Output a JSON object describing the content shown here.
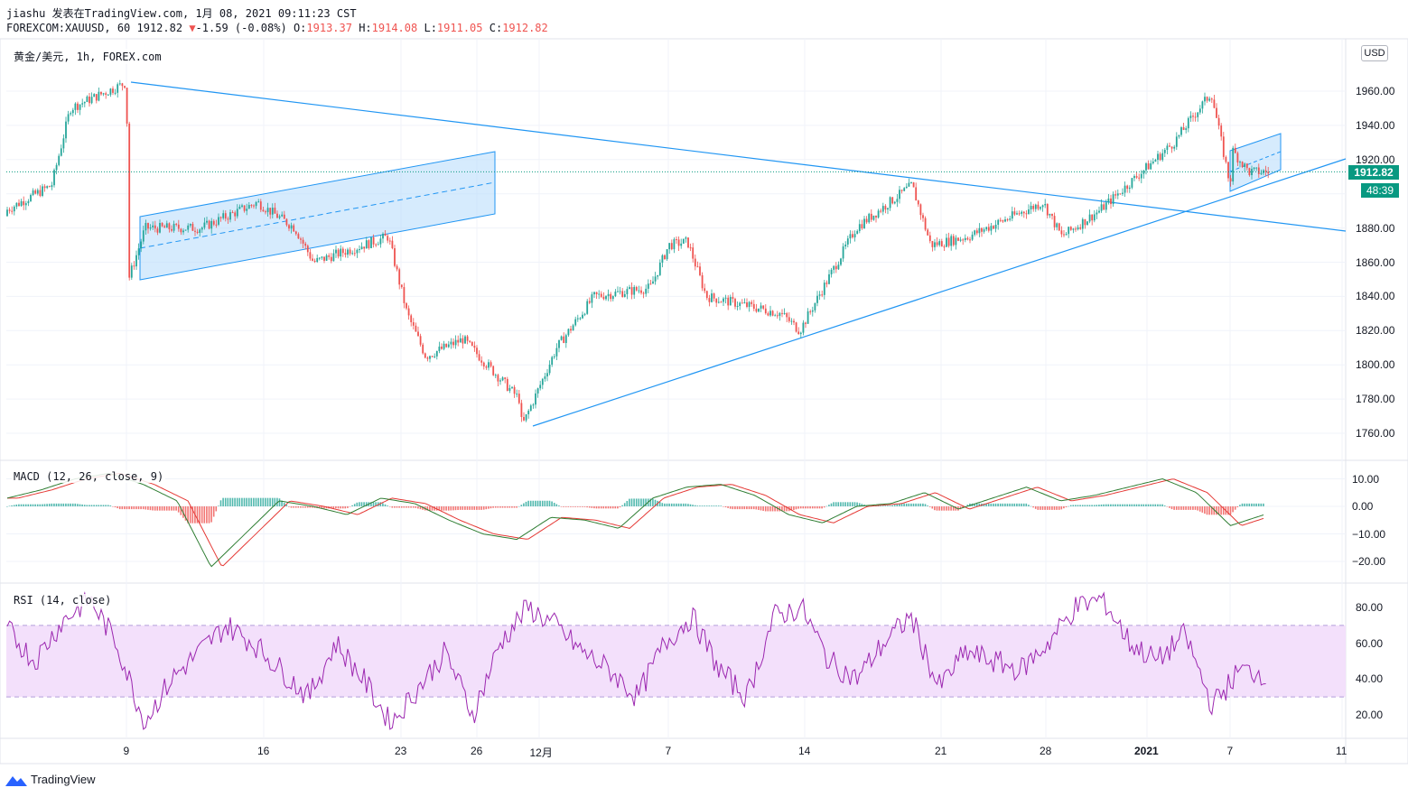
{
  "header": {
    "line1": "jiashu 发表在TradingView.com, 1月 08, 2021 09:11:23 CST",
    "symbol": "FOREXCOM:XAUUSD, 60 1912.82",
    "change_arrow": "▼",
    "change": "-1.59 (-0.08%)",
    "open_label": "O:",
    "open": "1913.37",
    "high_label": "H:",
    "high": "1914.08",
    "low_label": "L:",
    "low": "1911.05",
    "close_label": "C:",
    "close": "1912.82"
  },
  "main_pane": {
    "title": "黄金/美元, 1h, FOREX.com"
  },
  "macd_pane": {
    "title": "MACD (12, 26, close, 9)"
  },
  "rsi_pane": {
    "title": "RSI (14, close)"
  },
  "price_axis": {
    "currency": "USD",
    "current_price": "1912.82",
    "countdown": "48:39",
    "ticks": [
      "1960.00",
      "1940.00",
      "1920.00",
      "1880.00",
      "1860.00",
      "1840.00",
      "1820.00",
      "1800.00",
      "1780.00",
      "1760.00"
    ]
  },
  "macd_axis": {
    "ticks": [
      "10.00",
      "0.00",
      "−10.00",
      "−20.00"
    ]
  },
  "rsi_axis": {
    "ticks": [
      "80.00",
      "60.00",
      "40.00",
      "20.00"
    ]
  },
  "time_axis": {
    "ticks": [
      {
        "label": "9",
        "bold": false
      },
      {
        "label": "16",
        "bold": false
      },
      {
        "label": "23",
        "bold": false
      },
      {
        "label": "26",
        "bold": false
      },
      {
        "label": "12月",
        "bold": false
      },
      {
        "label": "7",
        "bold": false
      },
      {
        "label": "14",
        "bold": false
      },
      {
        "label": "21",
        "bold": false
      },
      {
        "label": "28",
        "bold": false
      },
      {
        "label": "2021",
        "bold": true
      },
      {
        "label": "7",
        "bold": false
      },
      {
        "label": "11",
        "bold": false
      }
    ]
  },
  "colors": {
    "up": "#26a69a",
    "down": "#ef5350",
    "trendline": "#2196f3",
    "channel_fill": "#bbdefb",
    "macd_line": "#2e7d32",
    "signal_line": "#e53935",
    "rsi_line": "#9c27b0",
    "rsi_band": "#f3e0fb",
    "price_tag": "#089981"
  },
  "chart_data": [
    {
      "type": "candlestick",
      "title": "黄金/美元, 1h, FOREX.com",
      "y_unit": "USD",
      "ylim": [
        1750,
        1975
      ],
      "x_range": [
        "2020-11-02",
        "2021-01-11"
      ],
      "approx_path": [
        {
          "x": "2020-11-02",
          "y": 1887
        },
        {
          "x": "2020-11-05",
          "y": 1905
        },
        {
          "x": "2020-11-06",
          "y": 1950
        },
        {
          "x": "2020-11-09",
          "y": 1965
        },
        {
          "x": "2020-11-09",
          "y": 1851
        },
        {
          "x": "2020-11-10",
          "y": 1880
        },
        {
          "x": "2020-11-13",
          "y": 1880
        },
        {
          "x": "2020-11-16",
          "y": 1895
        },
        {
          "x": "2020-11-18",
          "y": 1880
        },
        {
          "x": "2020-11-19",
          "y": 1860
        },
        {
          "x": "2020-11-23",
          "y": 1875
        },
        {
          "x": "2020-11-24",
          "y": 1830
        },
        {
          "x": "2020-11-25",
          "y": 1805
        },
        {
          "x": "2020-11-27",
          "y": 1815
        },
        {
          "x": "2020-11-30",
          "y": 1780
        },
        {
          "x": "2020-11-30",
          "y": 1764
        },
        {
          "x": "2020-12-02",
          "y": 1810
        },
        {
          "x": "2020-12-04",
          "y": 1840
        },
        {
          "x": "2020-12-07",
          "y": 1845
        },
        {
          "x": "2020-12-08",
          "y": 1870
        },
        {
          "x": "2020-12-09",
          "y": 1872
        },
        {
          "x": "2020-12-10",
          "y": 1840
        },
        {
          "x": "2020-12-14",
          "y": 1830
        },
        {
          "x": "2020-12-15",
          "y": 1820
        },
        {
          "x": "2020-12-17",
          "y": 1860
        },
        {
          "x": "2020-12-18",
          "y": 1880
        },
        {
          "x": "2020-12-21",
          "y": 1905
        },
        {
          "x": "2020-12-22",
          "y": 1870
        },
        {
          "x": "2020-12-24",
          "y": 1875
        },
        {
          "x": "2020-12-28",
          "y": 1895
        },
        {
          "x": "2020-12-29",
          "y": 1875
        },
        {
          "x": "2020-12-31",
          "y": 1890
        },
        {
          "x": "2021-01-04",
          "y": 1930
        },
        {
          "x": "2021-01-05",
          "y": 1945
        },
        {
          "x": "2021-01-06",
          "y": 1959
        },
        {
          "x": "2021-01-07",
          "y": 1905
        },
        {
          "x": "2021-01-07",
          "y": 1925
        },
        {
          "x": "2021-01-08",
          "y": 1912.82
        }
      ],
      "open": 1913.37,
      "high": 1914.08,
      "low": 1911.05,
      "close": 1912.82
    },
    {
      "type": "line",
      "title": "MACD (12, 26, close, 9)",
      "ylim": [
        -25,
        12
      ],
      "series": [
        {
          "values": [
            3,
            6,
            10,
            12,
            8,
            2,
            -22,
            -10,
            2,
            0,
            -3,
            3,
            1,
            -5,
            -10,
            -12,
            -4,
            -5,
            -8,
            3,
            7,
            8,
            4,
            -3,
            -6,
            0,
            1,
            5,
            -1,
            3,
            7,
            2,
            4,
            7,
            10,
            5,
            -7,
            -3
          ]
        }
      ]
    },
    {
      "type": "line",
      "title": "RSI (14, close)",
      "ylim": [
        10,
        90
      ],
      "band": [
        30,
        70
      ],
      "series": [
        {
          "values": [
            68,
            50,
            72,
            85,
            60,
            16,
            40,
            55,
            70,
            60,
            45,
            30,
            60,
            40,
            15,
            35,
            55,
            20,
            60,
            80,
            70,
            55,
            45,
            30,
            60,
            75,
            45,
            30,
            75,
            80,
            50,
            40,
            60,
            75,
            35,
            55,
            50,
            45,
            60,
            80,
            85,
            60,
            50,
            65,
            25,
            45,
            43
          ]
        }
      ]
    }
  ]
}
